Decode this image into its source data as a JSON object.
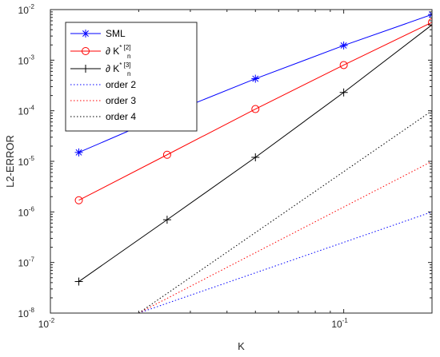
{
  "chart_data": {
    "type": "line",
    "title": "",
    "xlabel": "K",
    "ylabel": "L2-ERROR",
    "x_scale": "log",
    "y_scale": "log",
    "xlim": [
      0.01,
      0.2
    ],
    "ylim": [
      1e-08,
      0.01
    ],
    "grid": false,
    "legend_position": "top-left",
    "x_ticks": [
      {
        "value": 0.01,
        "base": "10",
        "exp": "-2"
      },
      {
        "value": 0.1,
        "base": "10",
        "exp": "-1"
      }
    ],
    "y_ticks": [
      {
        "value": 1e-08,
        "base": "10",
        "exp": "-8"
      },
      {
        "value": 1e-07,
        "base": "10",
        "exp": "-7"
      },
      {
        "value": 1e-06,
        "base": "10",
        "exp": "-6"
      },
      {
        "value": 1e-05,
        "base": "10",
        "exp": "-5"
      },
      {
        "value": 0.0001,
        "base": "10",
        "exp": "-4"
      },
      {
        "value": 0.001,
        "base": "10",
        "exp": "-3"
      },
      {
        "value": 0.01,
        "base": "10",
        "exp": "-2"
      }
    ],
    "series": [
      {
        "name": "SML",
        "legend_base": "SML",
        "legend_sub": "",
        "legend_sup": "",
        "color": "#0000ff",
        "marker": "asterisk",
        "line": "solid",
        "x": [
          0.0125,
          0.025,
          0.05,
          0.1,
          0.2
        ],
        "y": [
          1.5e-05,
          8.5e-05,
          0.00043,
          0.00195,
          0.008
        ]
      },
      {
        "name": "∂ K_n^*[2]",
        "legend_base": "∂ K",
        "legend_sub": "n",
        "legend_sup": "* [2]",
        "color": "#ff0000",
        "marker": "circle",
        "line": "solid",
        "x": [
          0.0125,
          0.025,
          0.05,
          0.1,
          0.2
        ],
        "y": [
          1.7e-06,
          1.35e-05,
          0.000108,
          0.0008,
          0.0056
        ]
      },
      {
        "name": "∂ K_n^*[3]",
        "legend_base": "∂ K",
        "legend_sub": "n",
        "legend_sup": "* [3]",
        "color": "#000000",
        "marker": "plus",
        "line": "solid",
        "x": [
          0.0125,
          0.025,
          0.05,
          0.1,
          0.2
        ],
        "y": [
          4.2e-08,
          7e-07,
          1.2e-05,
          0.00023,
          0.005
        ]
      },
      {
        "name": "order 2",
        "legend_base": "order 2",
        "legend_sub": "",
        "legend_sup": "",
        "color": "#0000ff",
        "marker": "none",
        "line": "dotted",
        "x": [
          0.02,
          0.2
        ],
        "y": [
          1e-08,
          1e-06
        ]
      },
      {
        "name": "order 3",
        "legend_base": "order 3",
        "legend_sub": "",
        "legend_sup": "",
        "color": "#ff0000",
        "marker": "none",
        "line": "dotted",
        "x": [
          0.02,
          0.2
        ],
        "y": [
          1e-08,
          1e-05
        ]
      },
      {
        "name": "order 4",
        "legend_base": "order 4",
        "legend_sub": "",
        "legend_sup": "",
        "color": "#000000",
        "marker": "none",
        "line": "dotted",
        "x": [
          0.02,
          0.2
        ],
        "y": [
          1e-08,
          0.0001
        ]
      }
    ]
  }
}
